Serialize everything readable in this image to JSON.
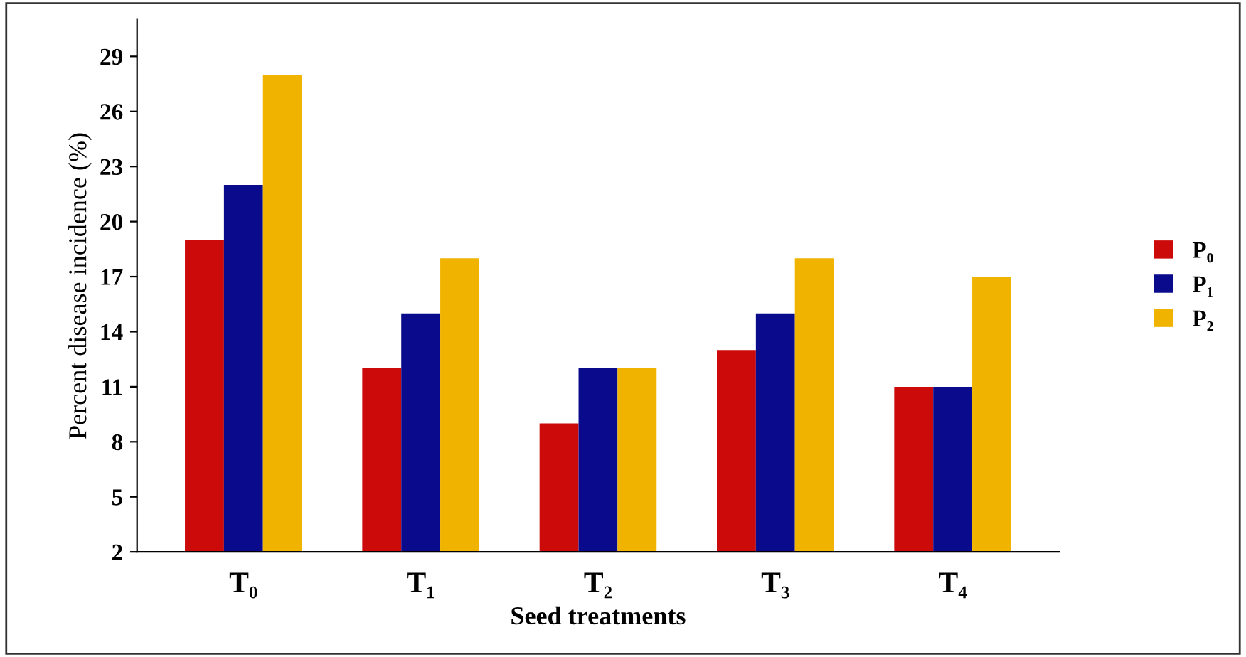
{
  "chart_data": {
    "type": "bar",
    "xlabel": "Seed treatments",
    "ylabel": "Percent disease incidence (%)",
    "categories": [
      "T₀",
      "T₁",
      "T₂",
      "T₃",
      "T₄"
    ],
    "series": [
      {
        "name": "P₀",
        "color": "#cc0a0a",
        "values": [
          19,
          12,
          9,
          13,
          11
        ]
      },
      {
        "name": "P₁",
        "color": "#0a0a8c",
        "values": [
          22,
          15,
          12,
          15,
          11
        ]
      },
      {
        "name": "P₂",
        "color": "#f0b400",
        "values": [
          28,
          18,
          12,
          18,
          17
        ]
      }
    ],
    "ylim": [
      2,
      31
    ],
    "yticks": [
      2,
      5,
      8,
      11,
      14,
      17,
      20,
      23,
      26,
      29
    ],
    "grid": false,
    "legend": "right"
  }
}
